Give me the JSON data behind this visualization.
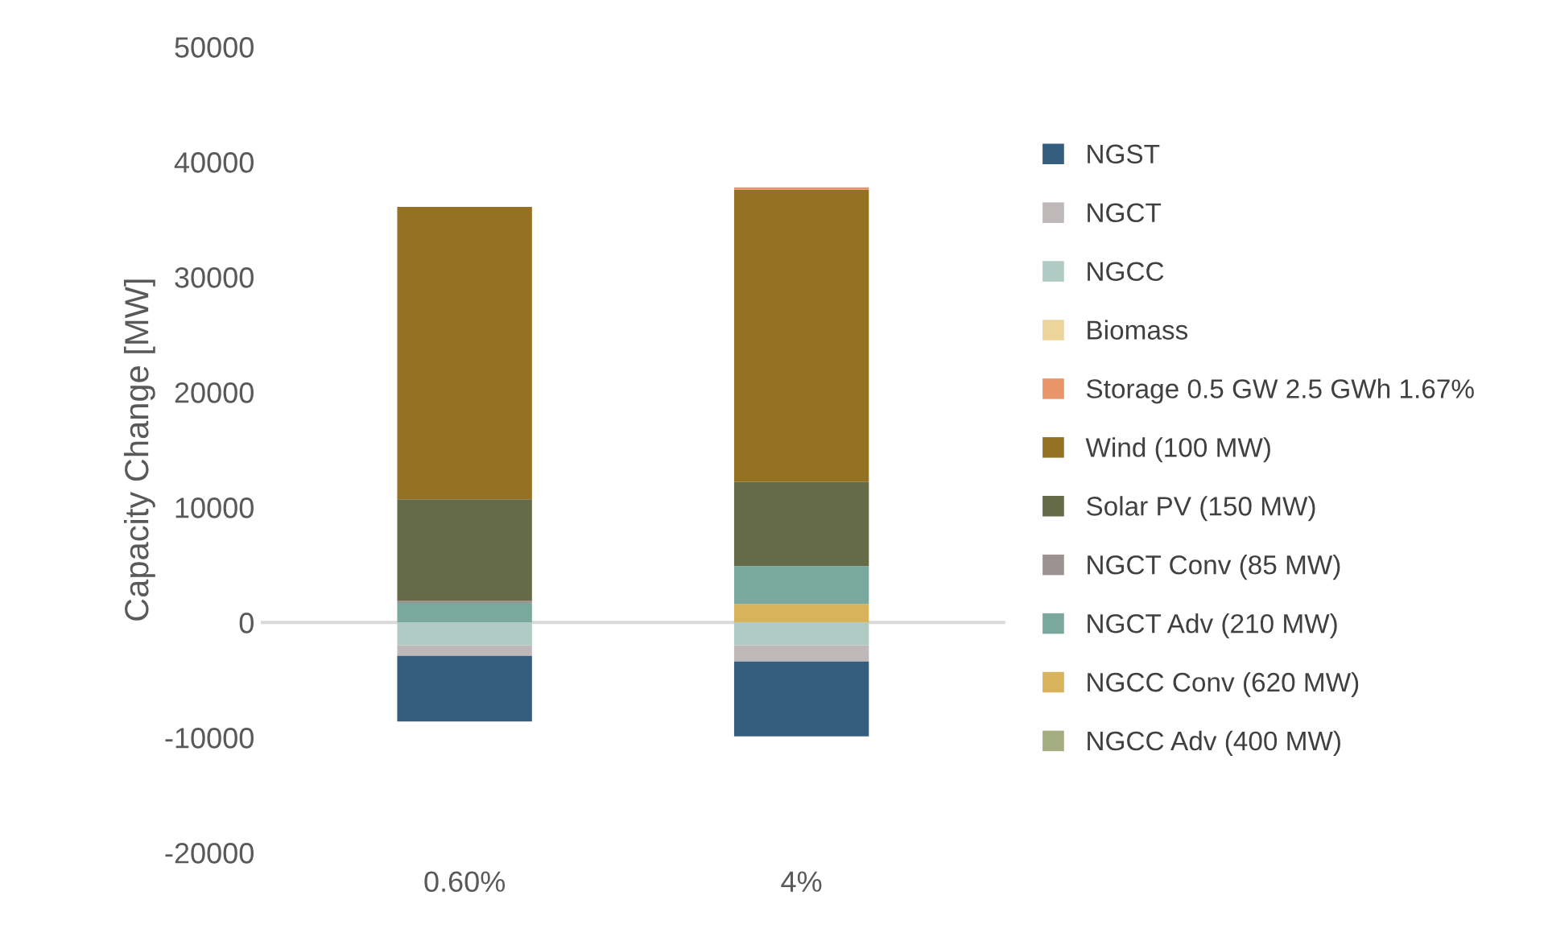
{
  "chart_data": {
    "type": "bar",
    "stacked": true,
    "ylabel": "Capacity Change [MW]",
    "categories": [
      "0.60%",
      "4%"
    ],
    "series": [
      {
        "name": "NGCC Adv (400 MW)",
        "color": "#a3ad7f",
        "values": [
          0,
          0
        ]
      },
      {
        "name": "NGCC Conv (620 MW)",
        "color": "#d9b25c",
        "values": [
          0,
          1600
        ]
      },
      {
        "name": "NGCT Adv (210 MW)",
        "color": "#7ba89c",
        "values": [
          1700,
          3300
        ]
      },
      {
        "name": "NGCT Conv (85 MW)",
        "color": "#9c9292",
        "values": [
          200,
          0
        ]
      },
      {
        "name": "Solar PV (150 MW)",
        "color": "#656b47",
        "values": [
          8800,
          7300
        ]
      },
      {
        "name": "Wind (100 MW)",
        "color": "#957124",
        "values": [
          25400,
          25400
        ]
      },
      {
        "name": "Storage 0.5 GW 2.5 GWh 1.67%",
        "color": "#e8956a",
        "values": [
          0,
          200
        ]
      },
      {
        "name": "Biomass",
        "color": "#ecd49b",
        "values": [
          0,
          0
        ]
      },
      {
        "name": "NGCC",
        "color": "#b0cbc3",
        "values": [
          -2000,
          -2000
        ]
      },
      {
        "name": "NGCT",
        "color": "#bfb8b9",
        "values": [
          -900,
          -1400
        ]
      },
      {
        "name": "NGST",
        "color": "#355e7e",
        "values": [
          -5700,
          -6500
        ]
      }
    ],
    "ylim": [
      -20000,
      50000
    ],
    "yticks": [
      -20000,
      -10000,
      0,
      10000,
      20000,
      30000,
      40000,
      50000
    ],
    "legend": "right"
  }
}
